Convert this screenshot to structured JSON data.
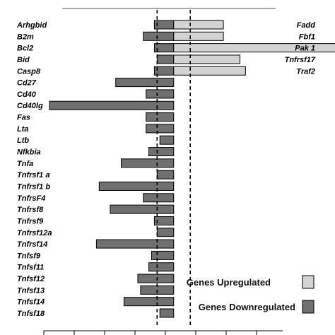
{
  "chart_data": {
    "type": "bar",
    "orientation": "horizontal",
    "title": "",
    "xlabel": "",
    "ylabel": "",
    "baseline": 1,
    "xlim": [
      -3.5,
      5
    ],
    "threshold_lines": [
      0.4,
      1.6
    ],
    "grid": false,
    "legend_position": "bottom-right",
    "colors": {
      "up": "#d3d3d3",
      "down": "#707070",
      "edge": "#000000"
    },
    "legend": [
      {
        "name": "Genes Upregulated",
        "color": "#d3d3d3"
      },
      {
        "name": "Genes Downregulated",
        "color": "#707070"
      }
    ],
    "rows": [
      {
        "left": "Arhgbid",
        "down": 0.3,
        "right": "Fadd",
        "up": 2.8
      },
      {
        "left": "B2m",
        "down": -0.1,
        "right": "Fbf1",
        "up": 2.8
      },
      {
        "left": "Bcl2",
        "down": 0.3,
        "right": "Pak 1",
        "up": 10.0
      },
      {
        "left": "Bid",
        "down": 0.4,
        "right": "Tnfrsf17",
        "up": 3.4
      },
      {
        "left": "Casp8",
        "down": 0.3,
        "right": "Traf2",
        "up": 3.6
      },
      {
        "left": "Cd27",
        "down": -1.1
      },
      {
        "left": "Cd40",
        "down": 0.0
      },
      {
        "left": "Cd40lg",
        "down": -3.5
      },
      {
        "left": "Fas",
        "down": 0.0
      },
      {
        "left": "Lta",
        "down": 0.0
      },
      {
        "left": "Ltb",
        "down": 0.5
      },
      {
        "left": "Nfkbia",
        "down": 0.1
      },
      {
        "left": "Tnfa",
        "down": -0.9
      },
      {
        "left": "Tnfrsf1 a",
        "down": 0.4
      },
      {
        "left": "Tnfrsf1 b",
        "down": -1.7
      },
      {
        "left": "TnfrsF4",
        "down": -0.1
      },
      {
        "left": "Tnfrsf8",
        "down": -1.3
      },
      {
        "left": "Tnfrsf9",
        "down": 0.3
      },
      {
        "left": "Tnfrsf12a",
        "down": 0.4
      },
      {
        "left": "Tnfrsf14",
        "down": -1.8
      },
      {
        "left": "Tnfsf9",
        "down": 0.2
      },
      {
        "left": "Tnfsf11",
        "down": 0.1
      },
      {
        "left": "Tnfsf12",
        "down": -0.3
      },
      {
        "left": "Tnfsf13",
        "down": -0.2
      },
      {
        "left": "Tnfsf14",
        "down": -0.8
      },
      {
        "left": "Tnfsf18",
        "down": 0.5
      }
    ]
  }
}
